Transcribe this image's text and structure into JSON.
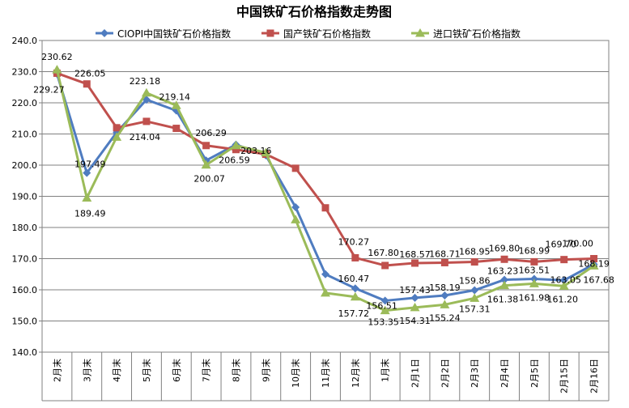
{
  "chart_data": {
    "type": "line",
    "title": "中国铁矿石价格指数走势图",
    "categories": [
      "2月末",
      "3月末",
      "4月末",
      "5月末",
      "6月末",
      "7月末",
      "8月末",
      "9月末",
      "10月末",
      "11月末",
      "12月末",
      "1月末",
      "2月1日",
      "2月2日",
      "2月3日",
      "2月4日",
      "2月5日",
      "2月15日",
      "2月16日"
    ],
    "ylim": [
      140,
      240
    ],
    "yticks": [
      "140.0",
      "150.0",
      "160.0",
      "170.0",
      "180.0",
      "190.0",
      "200.0",
      "210.0",
      "220.0",
      "230.0",
      "240.0"
    ],
    "grid": true,
    "legend_position": "top",
    "series": [
      {
        "name": "CIOPI中国铁矿石价格指数",
        "color": "#4F7CC0",
        "marker": "diamond",
        "values": [
          229.27,
          197.49,
          210.5,
          221.0,
          217.5,
          201.5,
          206.59,
          203.16,
          186.5,
          165.0,
          160.47,
          156.51,
          157.43,
          158.19,
          159.86,
          163.23,
          163.51,
          163.05,
          168.19
        ]
      },
      {
        "name": "国产铁矿石价格指数",
        "color": "#C0504D",
        "marker": "square",
        "values": [
          229.5,
          226.05,
          212.0,
          214.04,
          211.8,
          206.29,
          205.0,
          203.5,
          199.0,
          186.3,
          170.27,
          167.8,
          168.57,
          168.71,
          168.95,
          169.8,
          168.99,
          169.7,
          170.0
        ]
      },
      {
        "name": "进口铁矿石价格指数",
        "color": "#9BBB59",
        "marker": "triangle",
        "values": [
          230.62,
          189.49,
          209.0,
          223.18,
          219.14,
          200.07,
          206.3,
          204.0,
          182.5,
          159.0,
          157.72,
          153.35,
          154.31,
          155.24,
          157.31,
          161.38,
          161.98,
          161.2,
          167.68
        ]
      }
    ],
    "labels": [
      {
        "text": "230.62",
        "x": 0,
        "y": 230.62
      },
      {
        "text": "229.27",
        "x": 0,
        "y": 229.27
      },
      {
        "text": "226.05",
        "x": 1,
        "y": 226.05
      },
      {
        "text": "197.49",
        "x": 1,
        "y": 197.49
      },
      {
        "text": "189.49",
        "x": 1,
        "y": 189.49
      },
      {
        "text": "223.18",
        "x": 3,
        "y": 223.18
      },
      {
        "text": "214.04",
        "x": 3,
        "y": 214.04
      },
      {
        "text": "219.14",
        "x": 4,
        "y": 219.14
      },
      {
        "text": "206.29",
        "x": 5,
        "y": 206.29
      },
      {
        "text": "200.07",
        "x": 5,
        "y": 200.07
      },
      {
        "text": "206.59",
        "x": 6,
        "y": 206.59
      },
      {
        "text": "203.16",
        "x": 7,
        "y": 203.16
      },
      {
        "text": "170.27",
        "x": 10,
        "y": 170.27
      },
      {
        "text": "160.47",
        "x": 10,
        "y": 160.47
      },
      {
        "text": "157.72",
        "x": 10,
        "y": 157.72
      },
      {
        "text": "167.80",
        "x": 11,
        "y": 167.8
      },
      {
        "text": "156.51",
        "x": 11,
        "y": 156.51
      },
      {
        "text": "153.35",
        "x": 11,
        "y": 153.35
      },
      {
        "text": "168.57",
        "x": 12,
        "y": 168.57
      },
      {
        "text": "157.43",
        "x": 12,
        "y": 157.43
      },
      {
        "text": "154.31",
        "x": 12,
        "y": 154.31
      },
      {
        "text": "168.71",
        "x": 13,
        "y": 168.71
      },
      {
        "text": "158.19",
        "x": 13,
        "y": 158.19
      },
      {
        "text": "155.24",
        "x": 13,
        "y": 155.24
      },
      {
        "text": "168.95",
        "x": 14,
        "y": 168.95
      },
      {
        "text": "159.86",
        "x": 14,
        "y": 159.86
      },
      {
        "text": "157.31",
        "x": 14,
        "y": 157.31
      },
      {
        "text": "169.80",
        "x": 15,
        "y": 169.8
      },
      {
        "text": "163.23",
        "x": 15,
        "y": 163.23
      },
      {
        "text": "161.38",
        "x": 15,
        "y": 161.38
      },
      {
        "text": "168.99",
        "x": 16,
        "y": 168.99
      },
      {
        "text": "163.51",
        "x": 16,
        "y": 163.51
      },
      {
        "text": "161.98",
        "x": 16,
        "y": 161.98
      },
      {
        "text": "169.70",
        "x": 17,
        "y": 169.7
      },
      {
        "text": "163.05",
        "x": 17,
        "y": 163.05
      },
      {
        "text": "161.20",
        "x": 17,
        "y": 161.2
      },
      {
        "text": "170.00",
        "x": 18,
        "y": 170.0
      },
      {
        "text": "168.19",
        "x": 18,
        "y": 168.19
      },
      {
        "text": "167.68",
        "x": 18,
        "y": 167.68
      }
    ]
  }
}
